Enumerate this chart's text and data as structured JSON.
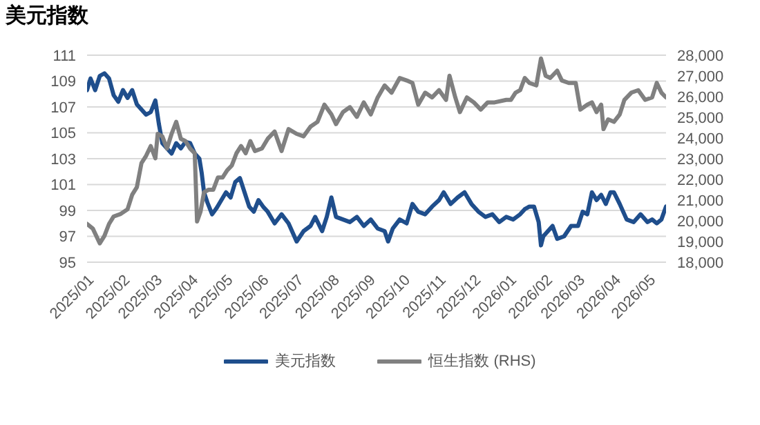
{
  "chart_data": {
    "type": "line",
    "title": "美元指数",
    "xlim": [
      "2025-01-01",
      "2026-05-16"
    ],
    "xticks": [
      {
        "value": "2025-01-01",
        "label": "2025/01"
      },
      {
        "value": "2025-02-01",
        "label": "2025/02"
      },
      {
        "value": "2025-03-01",
        "label": "2025/03"
      },
      {
        "value": "2025-04-01",
        "label": "2025/04"
      },
      {
        "value": "2025-05-01",
        "label": "2025/05"
      },
      {
        "value": "2025-06-01",
        "label": "2025/06"
      },
      {
        "value": "2025-07-01",
        "label": "2025/07"
      },
      {
        "value": "2025-08-01",
        "label": "2025/08"
      },
      {
        "value": "2025-09-01",
        "label": "2025/09"
      },
      {
        "value": "2025-10-01",
        "label": "2025/10"
      },
      {
        "value": "2025-11-01",
        "label": "2025/11"
      },
      {
        "value": "2025-12-01",
        "label": "2025/12"
      },
      {
        "value": "2026-01-01",
        "label": "2026/01"
      },
      {
        "value": "2026-02-01",
        "label": "2026/02"
      },
      {
        "value": "2026-03-01",
        "label": "2026/03"
      },
      {
        "value": "2026-04-01",
        "label": "2026/04"
      },
      {
        "value": "2026-05-01",
        "label": "2026/05"
      }
    ],
    "ylim": [
      95,
      111
    ],
    "yticks": [
      95,
      97,
      99,
      101,
      103,
      105,
      107,
      109,
      111
    ],
    "y2lim": [
      18000,
      28000
    ],
    "y2ticks": [
      {
        "value": 18000,
        "label": "18,000"
      },
      {
        "value": 19000,
        "label": "19,000"
      },
      {
        "value": 20000,
        "label": "20,000"
      },
      {
        "value": 21000,
        "label": "21,000"
      },
      {
        "value": 22000,
        "label": "22,000"
      },
      {
        "value": 23000,
        "label": "23,000"
      },
      {
        "value": 24000,
        "label": "24,000"
      },
      {
        "value": 25000,
        "label": "25,000"
      },
      {
        "value": 26000,
        "label": "26,000"
      },
      {
        "value": 27000,
        "label": "27,000"
      },
      {
        "value": 28000,
        "label": "28,000"
      }
    ],
    "grid": "y",
    "legend": "bottom",
    "series": [
      {
        "name": "美元指数",
        "color": "#1f4e8c",
        "x": [
          "2025-01-01",
          "2025-01-04",
          "2025-01-08",
          "2025-01-12",
          "2025-01-16",
          "2025-01-20",
          "2025-01-24",
          "2025-01-28",
          "2025-02-01",
          "2025-02-05",
          "2025-02-09",
          "2025-02-13",
          "2025-02-17",
          "2025-02-21",
          "2025-02-25",
          "2025-03-01",
          "2025-03-04",
          "2025-03-07",
          "2025-03-11",
          "2025-03-15",
          "2025-03-19",
          "2025-03-23",
          "2025-03-27",
          "2025-03-31",
          "2025-04-04",
          "2025-04-08",
          "2025-04-10",
          "2025-04-12",
          "2025-04-15",
          "2025-04-19",
          "2025-04-23",
          "2025-04-27",
          "2025-05-01",
          "2025-05-05",
          "2025-05-09",
          "2025-05-13",
          "2025-05-17",
          "2025-05-21",
          "2025-05-25",
          "2025-05-29",
          "2025-06-02",
          "2025-06-06",
          "2025-06-12",
          "2025-06-18",
          "2025-06-24",
          "2025-07-01",
          "2025-07-07",
          "2025-07-13",
          "2025-07-17",
          "2025-07-23",
          "2025-07-27",
          "2025-07-31",
          "2025-08-04",
          "2025-08-10",
          "2025-08-16",
          "2025-08-22",
          "2025-08-28",
          "2025-09-03",
          "2025-09-09",
          "2025-09-15",
          "2025-09-18",
          "2025-09-22",
          "2025-09-28",
          "2025-10-04",
          "2025-10-09",
          "2025-10-14",
          "2025-10-20",
          "2025-10-26",
          "2025-11-01",
          "2025-11-05",
          "2025-11-11",
          "2025-11-17",
          "2025-11-23",
          "2025-11-29",
          "2025-12-05",
          "2025-12-11",
          "2025-12-17",
          "2025-12-23",
          "2025-12-29",
          "2026-01-04",
          "2026-01-10",
          "2026-01-14",
          "2026-01-18",
          "2026-01-22",
          "2026-01-26",
          "2026-01-28",
          "2026-01-30",
          "2026-02-03",
          "2026-02-07",
          "2026-02-11",
          "2026-02-17",
          "2026-02-23",
          "2026-03-01",
          "2026-03-05",
          "2026-03-09",
          "2026-03-13",
          "2026-03-17",
          "2026-03-21",
          "2026-03-25",
          "2026-03-29",
          "2026-04-01",
          "2026-04-06",
          "2026-04-12",
          "2026-04-18",
          "2026-04-24",
          "2026-04-30",
          "2026-05-04",
          "2026-05-08",
          "2026-05-12",
          "2026-05-16"
        ],
        "values": [
          108.3,
          109.2,
          108.3,
          109.4,
          109.6,
          109.2,
          107.9,
          107.4,
          108.3,
          107.7,
          108.3,
          107.2,
          106.8,
          106.4,
          106.6,
          107.5,
          105.7,
          104.2,
          103.8,
          103.4,
          104.2,
          103.8,
          104.3,
          104.2,
          103.4,
          103.0,
          101.9,
          100.4,
          99.6,
          98.7,
          99.2,
          99.8,
          100.4,
          100.0,
          101.2,
          101.5,
          100.4,
          99.3,
          98.9,
          99.8,
          99.3,
          98.9,
          98.0,
          98.7,
          98.0,
          96.6,
          97.4,
          97.8,
          98.5,
          97.4,
          98.5,
          100.0,
          98.5,
          98.3,
          98.1,
          98.5,
          97.8,
          98.3,
          97.6,
          97.4,
          96.6,
          97.6,
          98.3,
          98.0,
          99.5,
          98.9,
          98.7,
          99.3,
          99.8,
          100.4,
          99.5,
          100.0,
          100.4,
          99.5,
          98.9,
          98.5,
          98.7,
          98.1,
          98.5,
          98.3,
          98.7,
          99.1,
          99.3,
          99.3,
          98.1,
          96.3,
          97.0,
          97.4,
          97.8,
          96.8,
          97.0,
          97.8,
          97.8,
          98.9,
          98.7,
          100.4,
          99.8,
          100.2,
          99.5,
          100.4,
          100.4,
          99.5,
          98.3,
          98.1,
          98.7,
          98.1,
          98.3,
          98.0,
          98.3,
          99.3
        ]
      },
      {
        "name": "恒生指数 (RHS)",
        "color": "#808080",
        "axis": "y2",
        "x": [
          "2025-01-01",
          "2025-01-06",
          "2025-01-12",
          "2025-01-16",
          "2025-01-20",
          "2025-01-24",
          "2025-01-30",
          "2025-02-05",
          "2025-02-09",
          "2025-02-13",
          "2025-02-17",
          "2025-02-21",
          "2025-02-25",
          "2025-03-01",
          "2025-03-03",
          "2025-03-07",
          "2025-03-11",
          "2025-03-15",
          "2025-03-19",
          "2025-03-23",
          "2025-03-27",
          "2025-03-31",
          "2025-04-04",
          "2025-04-06",
          "2025-04-09",
          "2025-04-12",
          "2025-04-16",
          "2025-04-20",
          "2025-04-24",
          "2025-04-28",
          "2025-05-02",
          "2025-05-06",
          "2025-05-10",
          "2025-05-14",
          "2025-05-18",
          "2025-05-22",
          "2025-05-26",
          "2025-06-01",
          "2025-06-06",
          "2025-06-12",
          "2025-06-18",
          "2025-06-24",
          "2025-07-01",
          "2025-07-07",
          "2025-07-13",
          "2025-07-19",
          "2025-07-25",
          "2025-07-31",
          "2025-08-04",
          "2025-08-10",
          "2025-08-16",
          "2025-08-22",
          "2025-08-28",
          "2025-09-03",
          "2025-09-09",
          "2025-09-15",
          "2025-09-21",
          "2025-09-28",
          "2025-10-04",
          "2025-10-09",
          "2025-10-14",
          "2025-10-20",
          "2025-10-26",
          "2025-11-01",
          "2025-11-07",
          "2025-11-10",
          "2025-11-15",
          "2025-11-19",
          "2025-11-25",
          "2025-12-01",
          "2025-12-07",
          "2025-12-13",
          "2025-12-19",
          "2025-12-29",
          "2026-01-02",
          "2026-01-06",
          "2026-01-10",
          "2026-01-14",
          "2026-01-18",
          "2026-01-24",
          "2026-01-28",
          "2026-02-01",
          "2026-02-05",
          "2026-02-11",
          "2026-02-15",
          "2026-02-21",
          "2026-02-27",
          "2026-03-03",
          "2026-03-09",
          "2026-03-13",
          "2026-03-17",
          "2026-03-21",
          "2026-03-23",
          "2026-03-27",
          "2026-04-01",
          "2026-04-06",
          "2026-04-10",
          "2026-04-16",
          "2026-04-22",
          "2026-04-28",
          "2026-05-04",
          "2026-05-08",
          "2026-05-12",
          "2026-05-16"
        ],
        "values": [
          19850,
          19620,
          18910,
          19270,
          19850,
          20210,
          20330,
          20560,
          21260,
          21620,
          22790,
          23140,
          23610,
          23020,
          24200,
          24080,
          23490,
          24200,
          24780,
          23960,
          23850,
          23490,
          23260,
          19970,
          20440,
          21380,
          21500,
          21500,
          22090,
          22090,
          22440,
          22670,
          23260,
          23610,
          23260,
          23850,
          23370,
          23490,
          23960,
          24310,
          23370,
          24430,
          24200,
          24080,
          24550,
          24780,
          25610,
          25140,
          24670,
          25250,
          25490,
          25020,
          25720,
          25140,
          25960,
          26540,
          26190,
          26900,
          26780,
          26660,
          25610,
          26190,
          25960,
          26310,
          25840,
          27010,
          25960,
          25250,
          25960,
          25720,
          25370,
          25720,
          25720,
          25840,
          25840,
          26190,
          26310,
          26900,
          26660,
          26540,
          27840,
          27010,
          26900,
          27250,
          26780,
          26660,
          26660,
          25370,
          25610,
          25720,
          25250,
          25610,
          24430,
          24900,
          24780,
          25140,
          25840,
          26190,
          26310,
          25840,
          25960,
          26660,
          26190,
          25960
        ]
      }
    ]
  }
}
